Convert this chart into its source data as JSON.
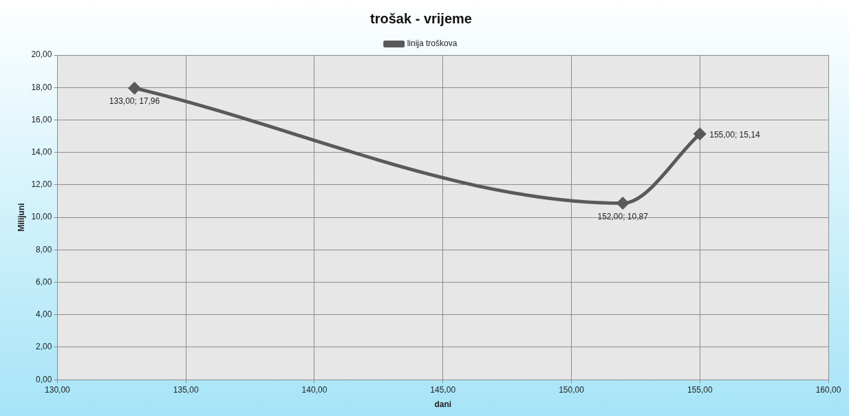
{
  "chart_data": {
    "type": "line",
    "title": "trošak - vrijeme",
    "xlabel": "dani",
    "ylabel": "Milijuni",
    "x": [
      133,
      152,
      155
    ],
    "series": [
      {
        "name": "linija troškova",
        "color": "#5a5a5a",
        "values": [
          17.96,
          10.87,
          15.14
        ],
        "value_labels": [
          "133,00; 17,96",
          "152,00; 10,87",
          "155,00; 15,14"
        ]
      }
    ],
    "xlim": [
      130,
      160
    ],
    "xticks": [
      {
        "value": 130,
        "label": "130,00"
      },
      {
        "value": 135,
        "label": "135,00"
      },
      {
        "value": 140,
        "label": "140,00"
      },
      {
        "value": 145,
        "label": "145,00"
      },
      {
        "value": 150,
        "label": "150,00"
      },
      {
        "value": 155,
        "label": "155,00"
      },
      {
        "value": 160,
        "label": "160,00"
      }
    ],
    "ylim": [
      0,
      20
    ],
    "yticks": [
      {
        "value": 0,
        "label": "0,00"
      },
      {
        "value": 2,
        "label": "2,00"
      },
      {
        "value": 4,
        "label": "4,00"
      },
      {
        "value": 6,
        "label": "6,00"
      },
      {
        "value": 8,
        "label": "8,00"
      },
      {
        "value": 10,
        "label": "10,00"
      },
      {
        "value": 12,
        "label": "12,00"
      },
      {
        "value": 14,
        "label": "14,00"
      },
      {
        "value": 16,
        "label": "16,00"
      },
      {
        "value": 18,
        "label": "18,00"
      },
      {
        "value": 20,
        "label": "20,00"
      }
    ],
    "grid": true,
    "legend": "top",
    "marker": "diamond",
    "line_style": "solid"
  }
}
